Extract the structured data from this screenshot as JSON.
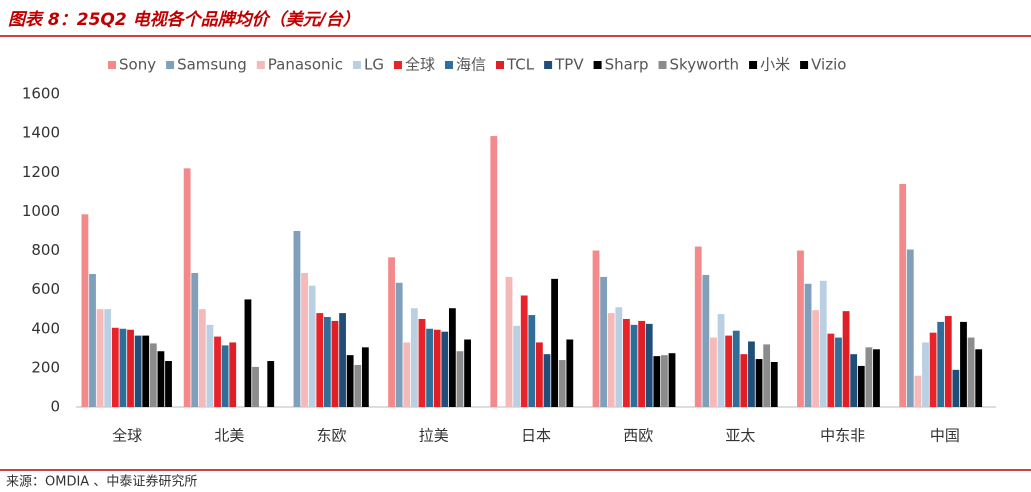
{
  "chart_data": {
    "type": "bar",
    "title": "图表 8：25Q2 电视各个品牌均价（美元/台）",
    "source": "来源：OMDIA 、中泰证券研究所",
    "categories": [
      "全球",
      "北美",
      "东欧",
      "拉美",
      "日本",
      "西欧",
      "亚太",
      "中东非",
      "中国"
    ],
    "series": [
      {
        "name": "Sony",
        "color": "#f4898b",
        "values": [
          985,
          1220,
          null,
          765,
          1385,
          800,
          820,
          800,
          1140
        ]
      },
      {
        "name": "Samsung",
        "color": "#7f9fba",
        "values": [
          680,
          685,
          900,
          635,
          null,
          665,
          675,
          630,
          805
        ]
      },
      {
        "name": "Panasonic",
        "color": "#f6b9b9",
        "values": [
          500,
          500,
          685,
          330,
          665,
          480,
          355,
          495,
          160
        ]
      },
      {
        "name": "LG",
        "color": "#bad0e2",
        "values": [
          500,
          420,
          620,
          505,
          415,
          510,
          475,
          645,
          330
        ]
      },
      {
        "name": "全球",
        "color": "#e8242a",
        "values": [
          405,
          360,
          480,
          450,
          570,
          450,
          365,
          375,
          380
        ]
      },
      {
        "name": "海信",
        "color": "#2f6e99",
        "values": [
          400,
          315,
          460,
          400,
          470,
          420,
          390,
          355,
          435
        ]
      },
      {
        "name": "TCL",
        "color": "#e01e26",
        "values": [
          395,
          330,
          440,
          395,
          330,
          440,
          270,
          490,
          465
        ]
      },
      {
        "name": "TPV",
        "color": "#1f4e79",
        "values": [
          365,
          null,
          480,
          385,
          270,
          425,
          335,
          270,
          190
        ]
      },
      {
        "name": "Sharp",
        "color": "#000000",
        "values": [
          365,
          550,
          265,
          505,
          655,
          260,
          245,
          210,
          435
        ]
      },
      {
        "name": "Skyworth",
        "color": "#8c8c8c",
        "values": [
          325,
          205,
          215,
          285,
          240,
          265,
          320,
          305,
          355
        ]
      },
      {
        "name": "小米",
        "color": "#000000",
        "values": [
          285,
          null,
          305,
          345,
          345,
          275,
          230,
          295,
          295
        ]
      },
      {
        "name": "Vizio",
        "color": "#000000",
        "values": [
          235,
          235,
          null,
          null,
          null,
          null,
          null,
          null,
          null
        ]
      }
    ],
    "ylim": [
      0,
      1600
    ],
    "yticks": [
      0,
      200,
      400,
      600,
      800,
      1000,
      1200,
      1400,
      1600
    ],
    "legend": "top",
    "grid": false
  }
}
